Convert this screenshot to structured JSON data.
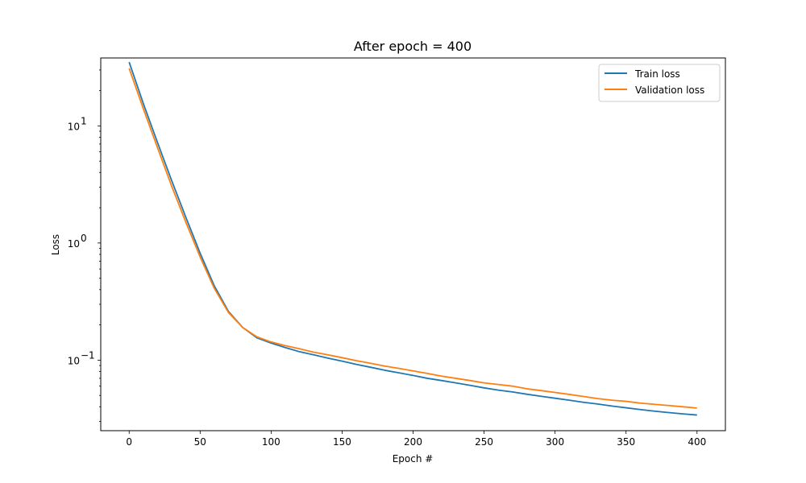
{
  "chart_data": {
    "type": "line",
    "title": "After epoch = 400",
    "xlabel": "Epoch #",
    "ylabel": "Loss",
    "xlim": [
      -20,
      420
    ],
    "ylim": [
      0.025,
      38
    ],
    "yscale": "log",
    "grid": false,
    "legend_position": "top-right",
    "x_ticks": [
      0,
      50,
      100,
      150,
      200,
      250,
      300,
      350,
      400
    ],
    "y_ticks": [
      {
        "value": 0.1,
        "base": "10",
        "exp": "−1"
      },
      {
        "value": 1,
        "base": "10",
        "exp": "0"
      },
      {
        "value": 10,
        "base": "10",
        "exp": "1"
      }
    ],
    "x": [
      0,
      10,
      20,
      30,
      40,
      50,
      60,
      70,
      80,
      90,
      100,
      110,
      120,
      130,
      140,
      150,
      160,
      170,
      180,
      190,
      200,
      210,
      220,
      230,
      240,
      250,
      260,
      270,
      280,
      290,
      300,
      310,
      320,
      330,
      340,
      350,
      360,
      370,
      380,
      390,
      400
    ],
    "series": [
      {
        "name": "Train loss",
        "color": "#1f77b4",
        "values": [
          35,
          15.5,
          7.2,
          3.4,
          1.65,
          0.82,
          0.43,
          0.26,
          0.19,
          0.155,
          0.14,
          0.128,
          0.118,
          0.111,
          0.104,
          0.098,
          0.092,
          0.087,
          0.082,
          0.078,
          0.074,
          0.07,
          0.067,
          0.064,
          0.061,
          0.058,
          0.0555,
          0.0535,
          0.0512,
          0.0492,
          0.0473,
          0.0455,
          0.0437,
          0.0422,
          0.0406,
          0.0392,
          0.0379,
          0.0367,
          0.0357,
          0.0348,
          0.034
        ]
      },
      {
        "name": "Validation loss",
        "color": "#ff7f0e",
        "values": [
          31,
          14,
          6.5,
          3.05,
          1.5,
          0.76,
          0.41,
          0.255,
          0.19,
          0.158,
          0.143,
          0.133,
          0.125,
          0.117,
          0.111,
          0.105,
          0.099,
          0.094,
          0.089,
          0.085,
          0.081,
          0.077,
          0.073,
          0.07,
          0.067,
          0.064,
          0.062,
          0.06,
          0.057,
          0.055,
          0.053,
          0.051,
          0.049,
          0.047,
          0.0455,
          0.0445,
          0.043,
          0.042,
          0.041,
          0.04,
          0.039
        ]
      }
    ]
  }
}
